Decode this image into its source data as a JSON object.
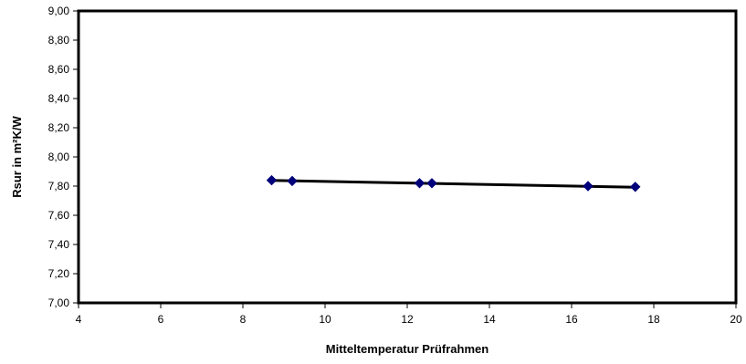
{
  "chart_data": {
    "type": "scatter",
    "title": "",
    "xlabel": "Mitteltemperatur Prüfrahmen",
    "ylabel": "Rsur in m²K/W",
    "xlim": [
      4,
      20
    ],
    "ylim": [
      7.0,
      9.0
    ],
    "x_ticks": [
      "4",
      "6",
      "8",
      "10",
      "12",
      "14",
      "16",
      "18",
      "20"
    ],
    "y_ticks": [
      "7,00",
      "7,20",
      "7,40",
      "7,60",
      "7,80",
      "8,00",
      "8,20",
      "8,40",
      "8,60",
      "8,80",
      "9,00"
    ],
    "grid": false,
    "legend": "none",
    "series": [
      {
        "marker_color": "#00007a",
        "marker": "diamond",
        "points": [
          {
            "x": 8.7,
            "y": 7.84
          },
          {
            "x": 9.2,
            "y": 7.835
          },
          {
            "x": 12.3,
            "y": 7.82
          },
          {
            "x": 12.6,
            "y": 7.82
          },
          {
            "x": 16.4,
            "y": 7.8
          },
          {
            "x": 17.55,
            "y": 7.795
          }
        ]
      }
    ],
    "trendline": {
      "type": "linear",
      "color": "#000000",
      "from": {
        "x": 8.7,
        "y": 7.839
      },
      "to": {
        "x": 17.55,
        "y": 7.792
      }
    }
  }
}
